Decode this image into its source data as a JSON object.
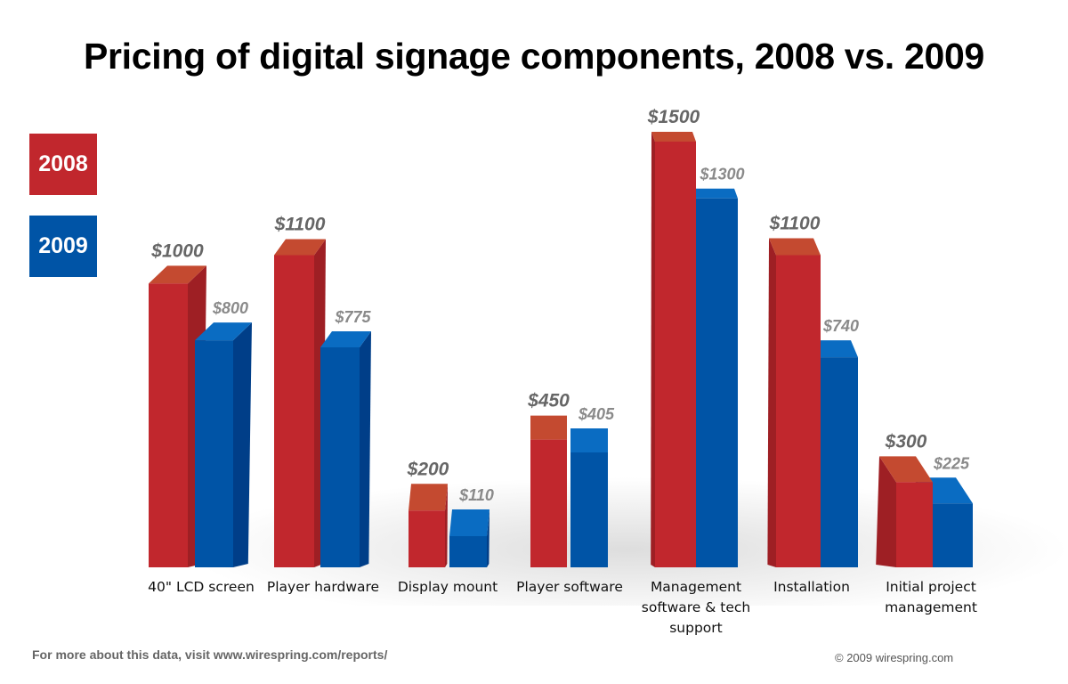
{
  "title": "Pricing of digital signage components, 2008 vs. 2009",
  "legend": [
    {
      "label": "2008",
      "color": "#c1272d"
    },
    {
      "label": "2009",
      "color": "#0054a6"
    }
  ],
  "colors": {
    "red_front": "#c1272d",
    "red_top": "#c44a30",
    "red_side": "#9e1f24",
    "blue_front": "#0054a6",
    "blue_top": "#0a6cc2",
    "blue_side": "#003e88",
    "label_2008": "#666666",
    "label_2009": "#8a8a8a"
  },
  "chart_data": {
    "type": "bar",
    "title": "Pricing of digital signage components, 2008 vs. 2009",
    "xlabel": "",
    "ylabel": "",
    "categories": [
      "40\" LCD screen",
      "Player hardware",
      "Display mount",
      "Player software",
      "Management software & tech support",
      "Installation",
      "Initial project management"
    ],
    "series": [
      {
        "name": "2008",
        "values": [
          1000,
          1100,
          200,
          450,
          1500,
          1100,
          300
        ],
        "labels": [
          "$1000",
          "$1100",
          "$200",
          "$450",
          "$1500",
          "$1100",
          "$300"
        ]
      },
      {
        "name": "2009",
        "values": [
          800,
          775,
          110,
          405,
          1300,
          740,
          225
        ],
        "labels": [
          "$800",
          "$775",
          "$110",
          "$405",
          "$1300",
          "$740",
          "$225"
        ]
      }
    ],
    "ylim": [
      0,
      1500
    ],
    "grid": false,
    "legend_position": "top-left",
    "style": "3d-bar"
  },
  "category_lines": [
    [
      "40\" LCD screen"
    ],
    [
      "Player hardware"
    ],
    [
      "Display mount"
    ],
    [
      "Player software"
    ],
    [
      "Management",
      "software & tech",
      "support"
    ],
    [
      "Installation"
    ],
    [
      "Initial project",
      "management"
    ]
  ],
  "footer": {
    "left": "For more about this data, visit www.wirespring.com/reports/",
    "right": "© 2009 wirespring.com"
  }
}
